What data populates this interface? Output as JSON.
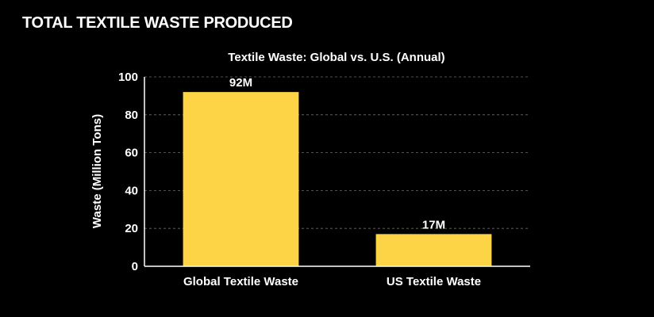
{
  "page": {
    "heading": "TOTAL TEXTILE WASTE PRODUCED"
  },
  "colors": {
    "background": "#000000",
    "bar": "#FDD445",
    "text": "#FFFFFF",
    "grid": "#6E6E6E"
  },
  "chart_data": {
    "type": "bar",
    "title": "Textile Waste: Global vs. U.S. (Annual)",
    "xlabel": "",
    "ylabel": "Waste (Million Tons)",
    "categories": [
      "Global Textile Waste",
      "US Textile Waste"
    ],
    "values": [
      92,
      17
    ],
    "data_labels": [
      "92M",
      "17M"
    ],
    "ylim": [
      0,
      100
    ],
    "yticks": [
      0,
      20,
      40,
      60,
      80,
      100
    ],
    "grid": true,
    "legend": "none"
  }
}
